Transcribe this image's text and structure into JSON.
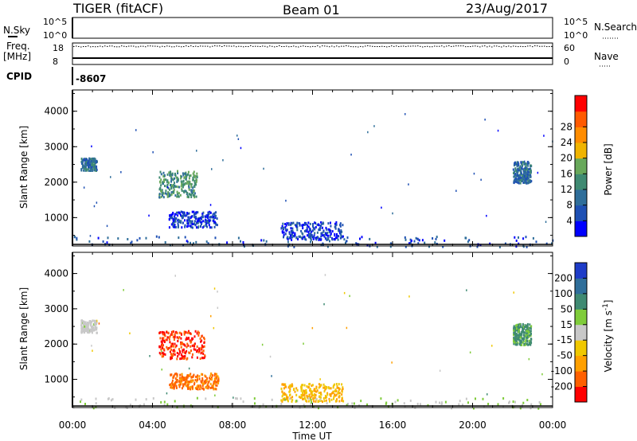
{
  "header": {
    "radar": "TIGER (fitACF)",
    "beam": "Beam 01",
    "date": "23/Aug/2017"
  },
  "params": {
    "nsky_label": "N.Sky",
    "nsearch_label": "N.Search",
    "freq_label_1": "Freq.",
    "freq_label_2": "[MHz]",
    "nave_label": "Nave",
    "cpid_label": "CPID",
    "cpid_value": "-8607",
    "nsky_ticks": [
      "10^5",
      "10^0"
    ],
    "nsearch_ticks": [
      "10^5",
      "10^0"
    ],
    "freq_ticks": [
      "18",
      "8"
    ],
    "nave_ticks": [
      "60",
      "0"
    ]
  },
  "chart_data": [
    {
      "type": "heatmap",
      "name": "power",
      "ylabel": "Slant Range [km]",
      "y_ticks": [
        1000,
        2000,
        3000,
        4000
      ],
      "ylim": [
        200,
        4600
      ],
      "xlim": [
        0,
        24
      ],
      "x_ticks": [
        "00:00",
        "04:00",
        "08:00",
        "12:00",
        "16:00",
        "20:00",
        "00:00"
      ],
      "colorbar": {
        "label": "Power [dB]",
        "ticks": [
          "4",
          "8",
          "12",
          "16",
          "20",
          "24",
          "28"
        ],
        "colors": [
          "#0000ff",
          "#1e50b4",
          "#2f6e9a",
          "#3f8a72",
          "#68a85a",
          "#f0b400",
          "#ff8c00",
          "#ff5a00",
          "#ff0000"
        ]
      },
      "clusters": [
        {
          "t0": 4.3,
          "t1": 6.2,
          "r0": 1600,
          "r1": 2350,
          "value": 14
        },
        {
          "t0": 4.8,
          "t1": 7.2,
          "r0": 750,
          "r1": 1200,
          "value": 6
        },
        {
          "t0": 0.4,
          "t1": 1.2,
          "r0": 2350,
          "r1": 2700,
          "value": 10
        },
        {
          "t0": 10.4,
          "t1": 13.5,
          "r0": 400,
          "r1": 900,
          "value": 6
        },
        {
          "t0": 22.0,
          "t1": 22.9,
          "r0": 2000,
          "r1": 2600,
          "value": 10
        },
        {
          "t0": 0,
          "t1": 24,
          "r0": 200,
          "r1": 500,
          "value": 8
        }
      ]
    },
    {
      "type": "heatmap",
      "name": "velocity",
      "ylabel": "Slant Range [km]",
      "y_ticks": [
        1000,
        2000,
        3000,
        4000
      ],
      "ylim": [
        200,
        4600
      ],
      "xlim": [
        0,
        24
      ],
      "x_ticks": [
        "00:00",
        "04:00",
        "08:00",
        "12:00",
        "16:00",
        "20:00",
        "00:00"
      ],
      "xlabel": "Time UT",
      "colorbar": {
        "label": "Velocity [m s^-1]",
        "ticks": [
          "200",
          "100",
          "50",
          "15",
          "-15",
          "-50",
          "-100",
          "-200"
        ],
        "colors": [
          "#1e3cc8",
          "#2f6e9a",
          "#3f8a72",
          "#7fcc3a",
          "#c8c8c8",
          "#f0c800",
          "#ffa000",
          "#ff6000",
          "#ff0000"
        ]
      },
      "clusters": [
        {
          "t0": 4.3,
          "t1": 6.6,
          "r0": 1600,
          "r1": 2400,
          "value": -200
        },
        {
          "t0": 4.8,
          "t1": 7.3,
          "r0": 750,
          "r1": 1200,
          "value": -150
        },
        {
          "t0": 0.4,
          "t1": 1.2,
          "r0": 2350,
          "r1": 2700,
          "value": 0
        },
        {
          "t0": 10.4,
          "t1": 13.5,
          "r0": 400,
          "r1": 900,
          "value": -80
        },
        {
          "t0": 22.0,
          "t1": 22.9,
          "r0": 2000,
          "r1": 2600,
          "value": 100
        },
        {
          "t0": 0,
          "t1": 24,
          "r0": 200,
          "r1": 500,
          "value": 20
        }
      ]
    }
  ]
}
